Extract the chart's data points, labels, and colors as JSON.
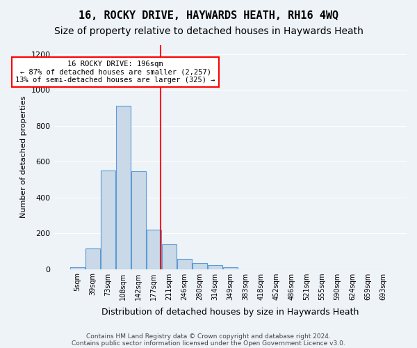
{
  "title": "16, ROCKY DRIVE, HAYWARDS HEATH, RH16 4WQ",
  "subtitle": "Size of property relative to detached houses in Haywards Heath",
  "xlabel": "Distribution of detached houses by size in Haywards Heath",
  "ylabel": "Number of detached properties",
  "footer_line1": "Contains HM Land Registry data © Crown copyright and database right 2024.",
  "footer_line2": "Contains public sector information licensed under the Open Government Licence v3.0.",
  "annotation_line1": "16 ROCKY DRIVE: 196sqm",
  "annotation_line2": "← 87% of detached houses are smaller (2,257)",
  "annotation_line3": "13% of semi-detached houses are larger (325) →",
  "bar_labels": [
    "5sqm",
    "39sqm",
    "73sqm",
    "108sqm",
    "142sqm",
    "177sqm",
    "211sqm",
    "246sqm",
    "280sqm",
    "314sqm",
    "349sqm",
    "383sqm",
    "418sqm",
    "452sqm",
    "486sqm",
    "521sqm",
    "555sqm",
    "590sqm",
    "624sqm",
    "659sqm",
    "693sqm"
  ],
  "bar_values": [
    8,
    115,
    550,
    910,
    545,
    220,
    140,
    55,
    35,
    20,
    10,
    0,
    0,
    0,
    0,
    0,
    0,
    0,
    0,
    0,
    0
  ],
  "bar_color": "#c9d9e8",
  "bar_edge_color": "#5b9bd5",
  "red_line_x": 5.45,
  "ylim": [
    0,
    1250
  ],
  "yticks": [
    0,
    200,
    400,
    600,
    800,
    1000,
    1200
  ],
  "bg_color": "#eef3f8",
  "plot_bg_color": "#eef3f8",
  "grid_color": "#ffffff",
  "title_fontsize": 11,
  "subtitle_fontsize": 10
}
